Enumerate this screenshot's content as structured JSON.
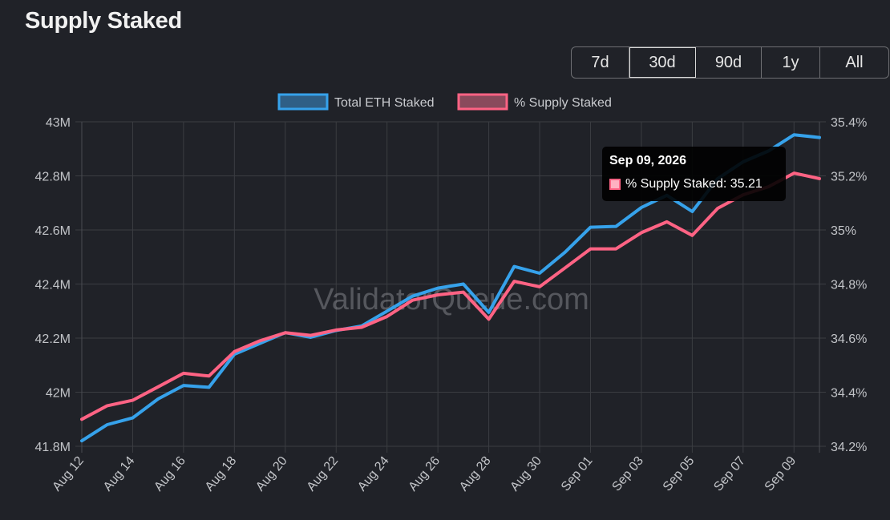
{
  "page": {
    "title": "Supply Staked"
  },
  "ranges": [
    {
      "label": "7d",
      "active": false
    },
    {
      "label": "30d",
      "active": true
    },
    {
      "label": "90d",
      "active": false
    },
    {
      "label": "1y",
      "active": false
    },
    {
      "label": "All",
      "active": false
    }
  ],
  "watermark": "ValidatorQueue.com",
  "tooltip": {
    "title": "Sep 09, 2026",
    "series_label": "% Supply Staked",
    "value": "35.21",
    "text": "% Supply Staked: 35.21"
  },
  "colors": {
    "eth_line": "#36a2eb",
    "eth_fill": "#2f5f86",
    "pct_line": "#ff6384",
    "pct_fill": "#8a4a5c",
    "grid": "#3b3d42",
    "background": "#202228"
  },
  "chart_data": {
    "type": "line",
    "x": [
      "Aug 12",
      "Aug 13",
      "Aug 14",
      "Aug 15",
      "Aug 16",
      "Aug 17",
      "Aug 18",
      "Aug 19",
      "Aug 20",
      "Aug 21",
      "Aug 22",
      "Aug 23",
      "Aug 24",
      "Aug 25",
      "Aug 26",
      "Aug 27",
      "Aug 28",
      "Aug 29",
      "Aug 30",
      "Aug 31",
      "Sep 01",
      "Sep 02",
      "Sep 03",
      "Sep 04",
      "Sep 05",
      "Sep 06",
      "Sep 07",
      "Sep 08",
      "Sep 09",
      "Sep 10"
    ],
    "x_tick_labels": [
      "Aug 12",
      "Aug 14",
      "Aug 16",
      "Aug 18",
      "Aug 20",
      "Aug 22",
      "Aug 24",
      "Aug 26",
      "Aug 28",
      "Aug 30",
      "Sep 01",
      "Sep 03",
      "Sep 05",
      "Sep 07",
      "Sep 09"
    ],
    "series": [
      {
        "name": "Total ETH Staked",
        "axis": "left",
        "values": [
          41.82,
          41.88,
          41.905,
          41.975,
          42.025,
          42.018,
          42.14,
          42.18,
          42.22,
          42.203,
          42.228,
          42.245,
          42.3,
          42.355,
          42.385,
          42.4,
          42.295,
          42.465,
          42.44,
          42.518,
          42.61,
          42.613,
          42.683,
          42.728,
          42.668,
          42.79,
          42.852,
          42.892,
          42.952,
          42.942
        ]
      },
      {
        "name": "% Supply Staked",
        "axis": "right",
        "values": [
          34.3,
          34.35,
          34.37,
          34.42,
          34.47,
          34.46,
          34.55,
          34.59,
          34.62,
          34.61,
          34.63,
          34.64,
          34.68,
          34.74,
          34.76,
          34.77,
          34.67,
          34.81,
          34.79,
          34.86,
          34.93,
          34.93,
          34.99,
          35.03,
          34.98,
          35.08,
          35.13,
          35.16,
          35.21,
          35.19
        ]
      }
    ],
    "y_left": {
      "min": 41.8,
      "max": 43.0,
      "ticks": [
        "41.8M",
        "42M",
        "42.2M",
        "42.4M",
        "42.6M",
        "42.8M",
        "43M"
      ]
    },
    "y_right": {
      "min": 34.2,
      "max": 35.4,
      "ticks": [
        "34.2%",
        "34.4%",
        "34.6%",
        "34.8%",
        "35%",
        "35.2%",
        "35.4%"
      ]
    },
    "grid": true,
    "legend_position": "top-center"
  }
}
